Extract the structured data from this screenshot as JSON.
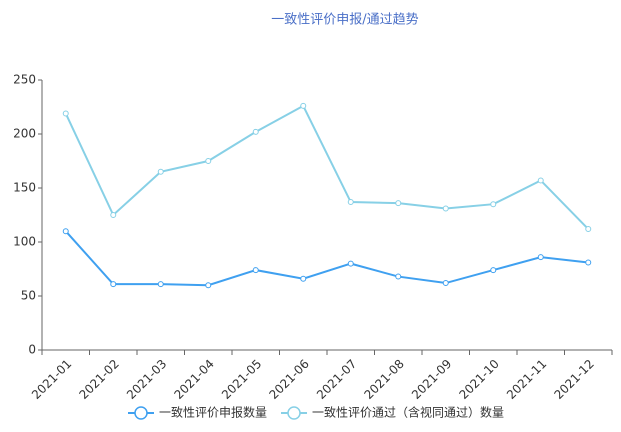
{
  "chart_data": {
    "type": "line",
    "title": "一致性评价申报/通过趋势",
    "categories": [
      "2021-01",
      "2021-02",
      "2021-03",
      "2021-04",
      "2021-05",
      "2021-06",
      "2021-07",
      "2021-08",
      "2021-09",
      "2021-10",
      "2021-11",
      "2021-12"
    ],
    "series": [
      {
        "name": "一致性评价申报数量",
        "color": "#3fa0f0",
        "values": [
          110,
          61,
          61,
          60,
          74,
          66,
          80,
          68,
          62,
          74,
          86,
          81
        ]
      },
      {
        "name": "一致性评价通过（含视同通过）数量",
        "color": "#87d0e6",
        "values": [
          219,
          125,
          165,
          175,
          202,
          226,
          137,
          136,
          131,
          135,
          157,
          112
        ]
      }
    ],
    "ylim": [
      0,
      250
    ],
    "yticks": [
      0,
      50,
      100,
      150,
      200,
      250
    ],
    "grid": false,
    "legend": "bottom"
  }
}
